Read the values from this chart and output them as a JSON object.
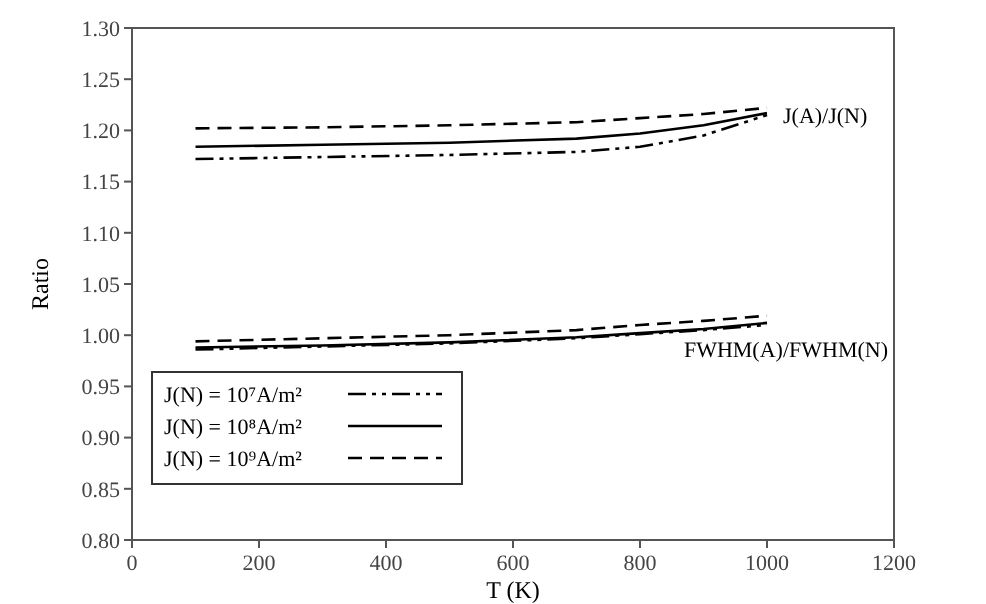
{
  "chart_data": {
    "type": "line",
    "xlabel": "T (K)",
    "ylabel": "Ratio",
    "x": [
      100,
      300,
      500,
      700,
      800,
      900,
      1000
    ],
    "series": [
      {
        "name": "J(N) = 10⁷A/m²",
        "color": "#000000",
        "line_style": "dashdot",
        "values": [
          1.172,
          1.174,
          1.176,
          1.179,
          1.184,
          1.195,
          1.215
        ]
      },
      {
        "name": "J(N) = 10⁸A/m²",
        "color": "#000000",
        "line_style": "solid",
        "values": [
          1.184,
          1.186,
          1.188,
          1.192,
          1.197,
          1.205,
          1.217
        ]
      },
      {
        "name": "J(N) = 10⁹A/m²",
        "color": "#000000",
        "line_style": "dashed",
        "values": [
          1.202,
          1.203,
          1.205,
          1.208,
          1.212,
          1.216,
          1.222
        ]
      },
      {
        "color": "#000000",
        "line_style": "dashdot",
        "values": [
          0.986,
          0.989,
          0.992,
          0.997,
          1.001,
          1.005,
          1.01
        ]
      },
      {
        "color": "#000000",
        "line_style": "solid",
        "values": [
          0.988,
          0.99,
          0.993,
          0.998,
          1.002,
          1.006,
          1.012
        ]
      },
      {
        "color": "#000000",
        "line_style": "dashed",
        "values": [
          0.994,
          0.997,
          1.0,
          1.005,
          1.01,
          1.014,
          1.019
        ]
      }
    ],
    "xlim": [
      0,
      1200
    ],
    "xticks": [
      0,
      200,
      400,
      600,
      800,
      1000,
      1200
    ],
    "ylim": [
      0.8,
      1.3
    ],
    "yticks": [
      {
        "value": 0.8,
        "label": "0.80"
      },
      {
        "value": 0.85,
        "label": "0.85"
      },
      {
        "value": 0.9,
        "label": "0.90"
      },
      {
        "value": 0.95,
        "label": "0.95"
      },
      {
        "value": 1.0,
        "label": "1.00"
      },
      {
        "value": 1.05,
        "label": "1.05"
      },
      {
        "value": 1.1,
        "label": "1.10"
      },
      {
        "value": 1.15,
        "label": "1.15"
      },
      {
        "value": 1.2,
        "label": "1.20"
      },
      {
        "value": 1.25,
        "label": "1.25"
      },
      {
        "value": 1.3,
        "label": "1.30"
      }
    ],
    "annotations": [
      {
        "text": "J(A)/J(N)",
        "x": 1000,
        "y": 1.215
      },
      {
        "text": "FWHM(A)/FWHM(N)",
        "x": 1000,
        "y": 1.01
      }
    ],
    "legend": "bottom left",
    "grid": false,
    "marker": "none"
  }
}
